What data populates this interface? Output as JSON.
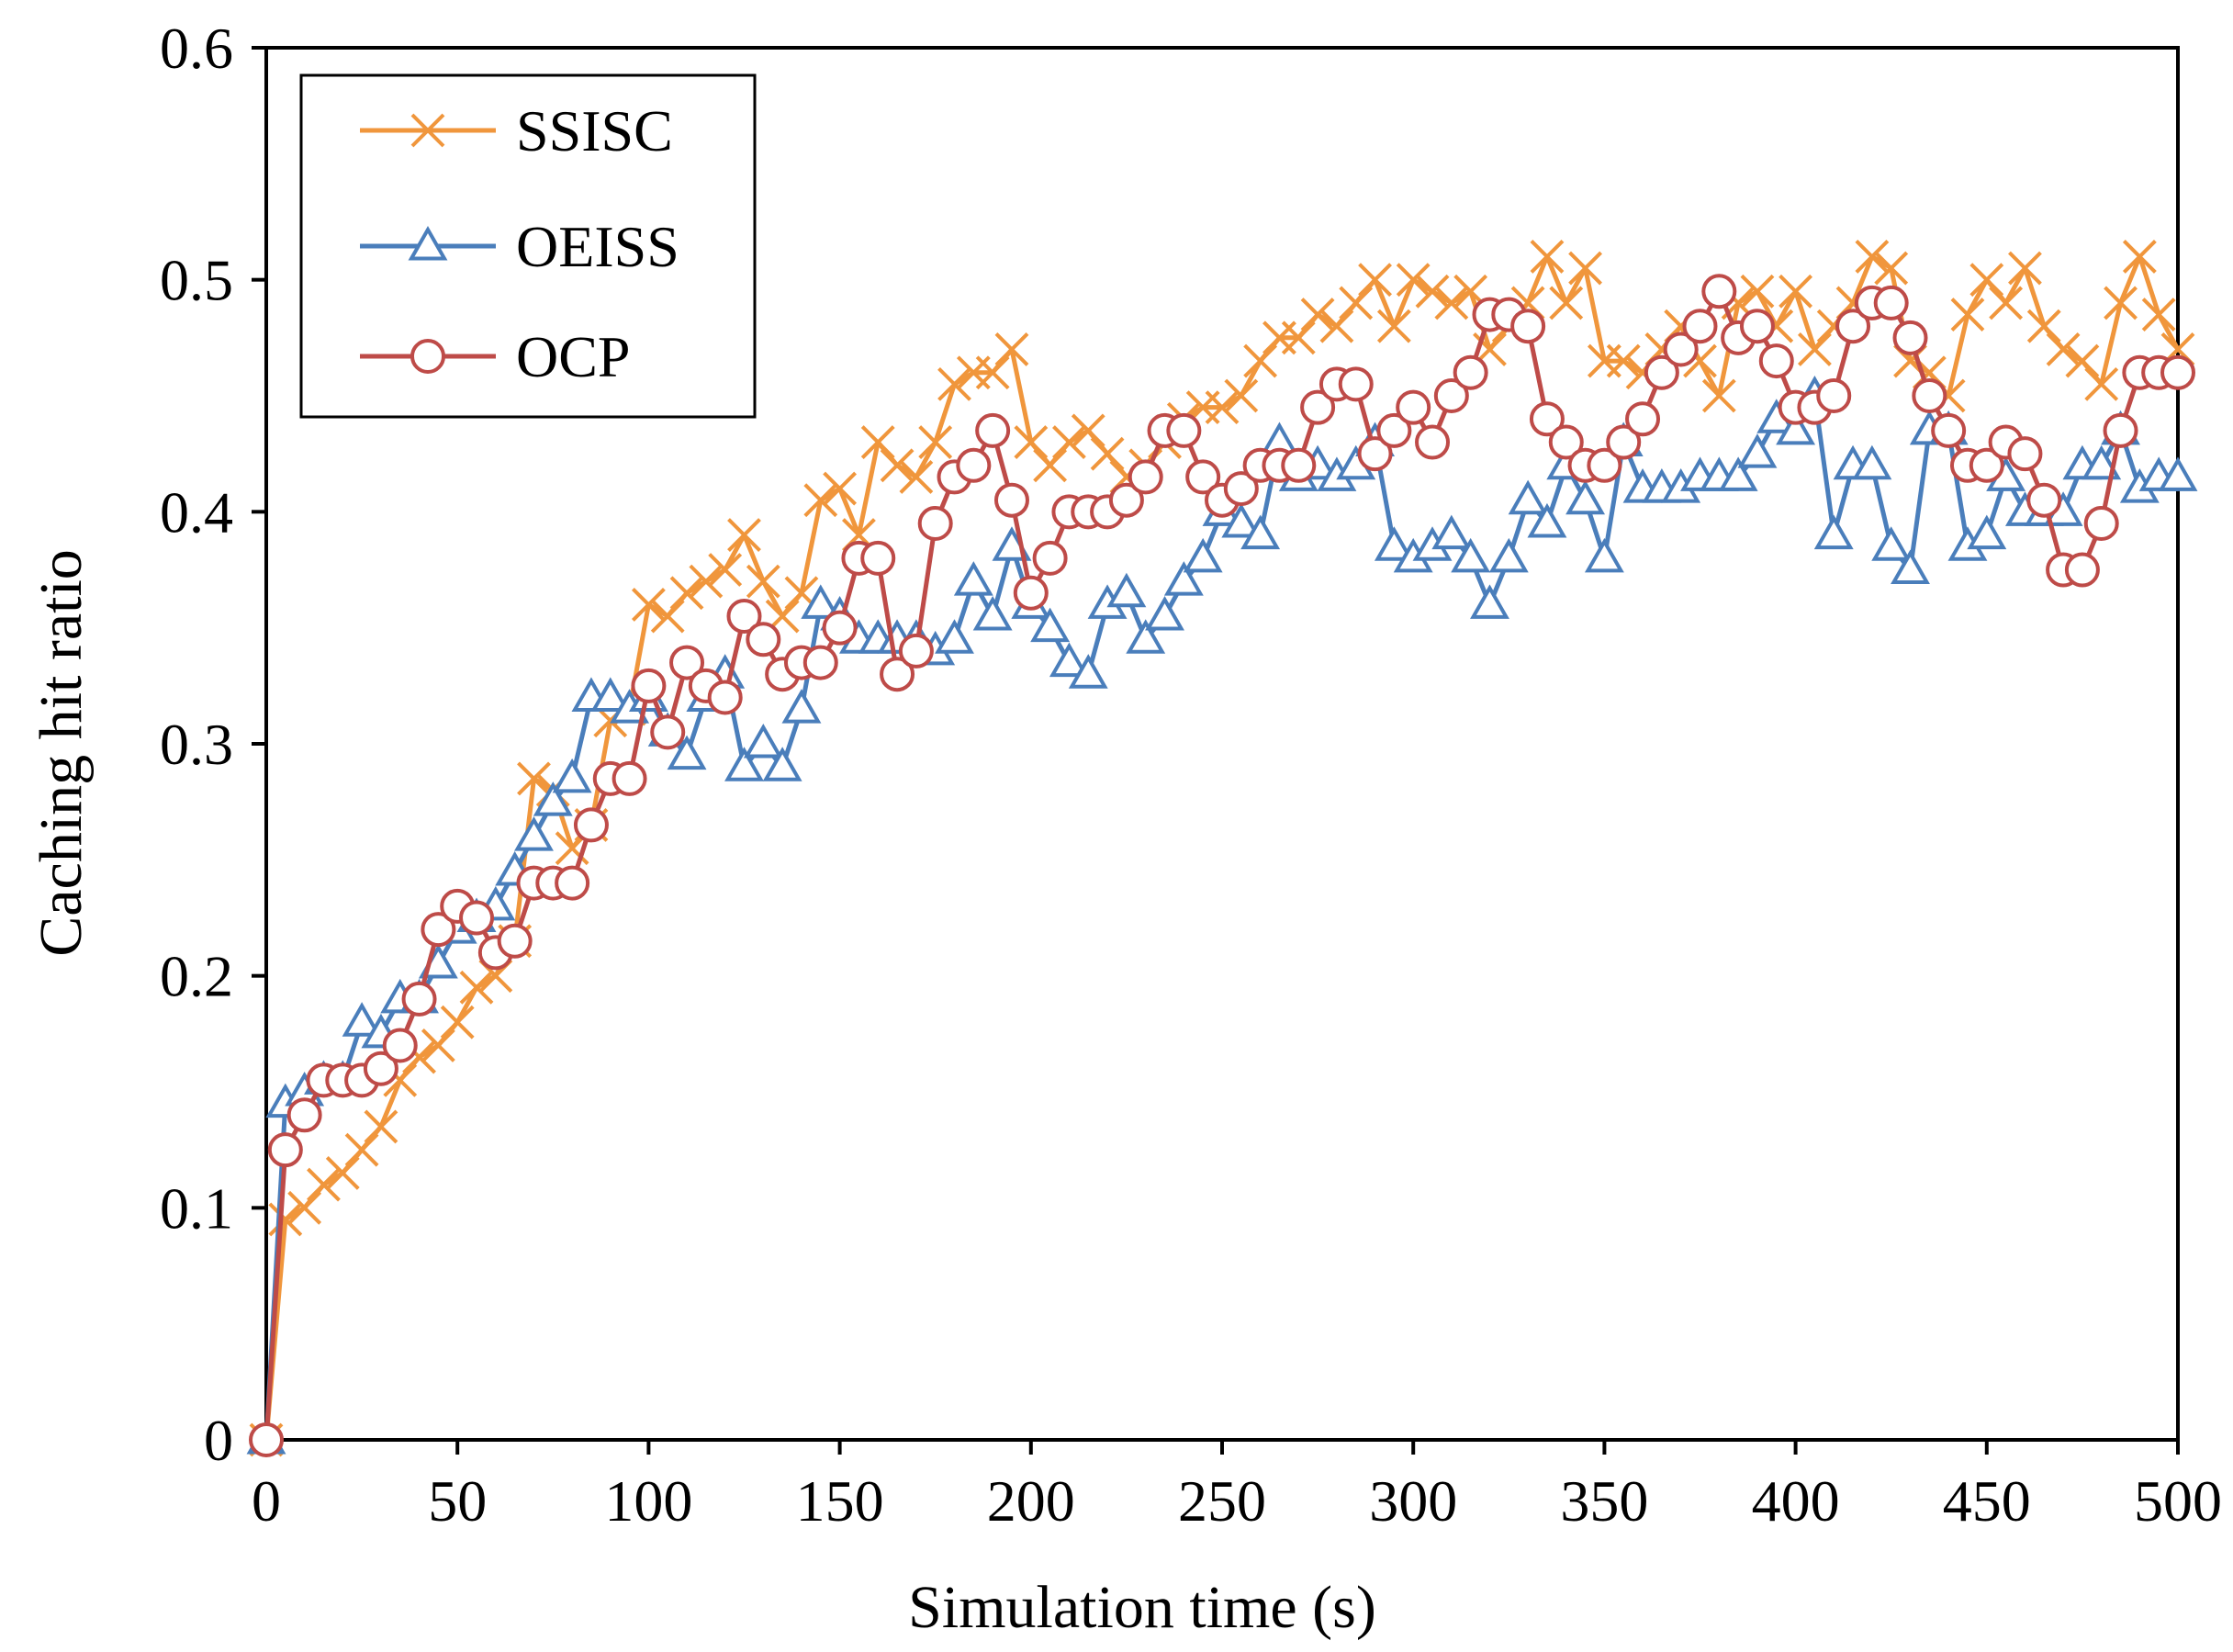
{
  "chart_data": {
    "type": "line",
    "title": "",
    "xlabel": "Simulation time (s)",
    "ylabel": "Caching hit ratio",
    "xlim": [
      0,
      500
    ],
    "ylim": [
      0,
      0.6
    ],
    "xticks": [
      0,
      50,
      100,
      150,
      200,
      250,
      300,
      350,
      400,
      450,
      500
    ],
    "xtick_labels": [
      "0",
      "50",
      "100",
      "150",
      "200",
      "250",
      "300",
      "350",
      "400",
      "450",
      "500"
    ],
    "yticks": [
      0,
      0.1,
      0.2,
      0.3,
      0.4,
      0.5,
      0.6
    ],
    "ytick_labels": [
      "0",
      "0.1",
      "0.2",
      "0.3",
      "0.4",
      "0.5",
      "0.6"
    ],
    "grid": false,
    "legend_position": "top-left",
    "x": [
      0,
      5,
      10,
      15,
      20,
      25,
      30,
      35,
      40,
      45,
      50,
      55,
      60,
      65,
      70,
      75,
      80,
      85,
      90,
      95,
      100,
      105,
      110,
      115,
      120,
      125,
      130,
      135,
      140,
      145,
      150,
      155,
      160,
      165,
      170,
      175,
      180,
      185,
      190,
      195,
      200,
      205,
      210,
      215,
      220,
      225,
      230,
      235,
      240,
      245,
      250,
      255,
      260,
      265,
      270,
      275,
      280,
      285,
      290,
      295,
      300,
      305,
      310,
      315,
      320,
      325,
      330,
      335,
      340,
      345,
      350,
      355,
      360,
      365,
      370,
      375,
      380,
      385,
      390,
      395,
      400,
      405,
      410,
      415,
      420,
      425,
      430,
      435,
      440,
      445,
      450,
      455,
      460,
      465,
      470,
      475,
      480,
      485,
      490,
      495,
      500
    ],
    "series": [
      {
        "name": "SSISC",
        "color": "#F0963C",
        "marker": "x",
        "values": [
          0.0,
          0.095,
          0.1,
          0.11,
          0.115,
          0.125,
          0.135,
          0.155,
          0.165,
          0.17,
          0.18,
          0.195,
          0.2,
          0.215,
          0.285,
          0.28,
          0.255,
          0.265,
          0.31,
          0.315,
          0.36,
          0.355,
          0.365,
          0.37,
          0.375,
          0.39,
          0.37,
          0.355,
          0.365,
          0.405,
          0.41,
          0.39,
          0.43,
          0.42,
          0.415,
          0.43,
          0.455,
          0.46,
          0.46,
          0.47,
          0.43,
          0.42,
          0.43,
          0.435,
          0.425,
          0.415,
          0.42,
          0.43,
          0.44,
          0.445,
          0.445,
          0.45,
          0.465,
          0.475,
          0.475,
          0.485,
          0.48,
          0.49,
          0.5,
          0.48,
          0.5,
          0.495,
          0.49,
          0.495,
          0.47,
          0.48,
          0.49,
          0.51,
          0.49,
          0.505,
          0.465,
          0.465,
          0.46,
          0.47,
          0.48,
          0.465,
          0.45,
          0.49,
          0.495,
          0.48,
          0.495,
          0.47,
          0.48,
          0.49,
          0.51,
          0.505,
          0.465,
          0.46,
          0.45,
          0.485,
          0.5,
          0.49,
          0.505,
          0.48,
          0.47,
          0.465,
          0.455,
          0.49,
          0.51,
          0.485,
          0.47
        ]
      },
      {
        "name": "OEISS",
        "color": "#4A7EBB",
        "marker": "triangle",
        "values": [
          0.0,
          0.145,
          0.15,
          0.155,
          0.155,
          0.18,
          0.175,
          0.19,
          0.19,
          0.205,
          0.22,
          0.225,
          0.23,
          0.245,
          0.26,
          0.275,
          0.285,
          0.32,
          0.32,
          0.315,
          0.32,
          0.305,
          0.295,
          0.32,
          0.33,
          0.29,
          0.3,
          0.29,
          0.315,
          0.36,
          0.355,
          0.345,
          0.345,
          0.345,
          0.345,
          0.34,
          0.345,
          0.37,
          0.355,
          0.385,
          0.36,
          0.35,
          0.335,
          0.33,
          0.36,
          0.365,
          0.345,
          0.355,
          0.37,
          0.38,
          0.4,
          0.395,
          0.39,
          0.43,
          0.415,
          0.42,
          0.415,
          0.42,
          0.43,
          0.385,
          0.38,
          0.385,
          0.39,
          0.38,
          0.36,
          0.38,
          0.405,
          0.395,
          0.42,
          0.405,
          0.38,
          0.43,
          0.41,
          0.41,
          0.41,
          0.415,
          0.415,
          0.415,
          0.425,
          0.44,
          0.435,
          0.45,
          0.39,
          0.42,
          0.42,
          0.385,
          0.375,
          0.435,
          0.435,
          0.385,
          0.39,
          0.415,
          0.4,
          0.4,
          0.4,
          0.42,
          0.42,
          0.435,
          0.41,
          0.415,
          0.415
        ]
      },
      {
        "name": "OCP",
        "color": "#BE4B48",
        "marker": "circle",
        "values": [
          0.0,
          0.125,
          0.14,
          0.155,
          0.155,
          0.155,
          0.16,
          0.17,
          0.19,
          0.22,
          0.23,
          0.225,
          0.21,
          0.215,
          0.24,
          0.24,
          0.24,
          0.265,
          0.285,
          0.285,
          0.325,
          0.305,
          0.335,
          0.325,
          0.32,
          0.355,
          0.345,
          0.33,
          0.335,
          0.335,
          0.35,
          0.38,
          0.38,
          0.33,
          0.34,
          0.395,
          0.415,
          0.42,
          0.435,
          0.405,
          0.365,
          0.38,
          0.4,
          0.4,
          0.4,
          0.405,
          0.415,
          0.435,
          0.435,
          0.415,
          0.405,
          0.41,
          0.42,
          0.42,
          0.42,
          0.445,
          0.455,
          0.455,
          0.425,
          0.435,
          0.445,
          0.43,
          0.45,
          0.46,
          0.485,
          0.485,
          0.48,
          0.44,
          0.43,
          0.42,
          0.42,
          0.43,
          0.44,
          0.46,
          0.47,
          0.48,
          0.495,
          0.475,
          0.48,
          0.465,
          0.445,
          0.445,
          0.45,
          0.48,
          0.49,
          0.49,
          0.475,
          0.45,
          0.435,
          0.42,
          0.42,
          0.43,
          0.425,
          0.405,
          0.375,
          0.375,
          0.395,
          0.435,
          0.46,
          0.46,
          0.46
        ]
      }
    ]
  }
}
